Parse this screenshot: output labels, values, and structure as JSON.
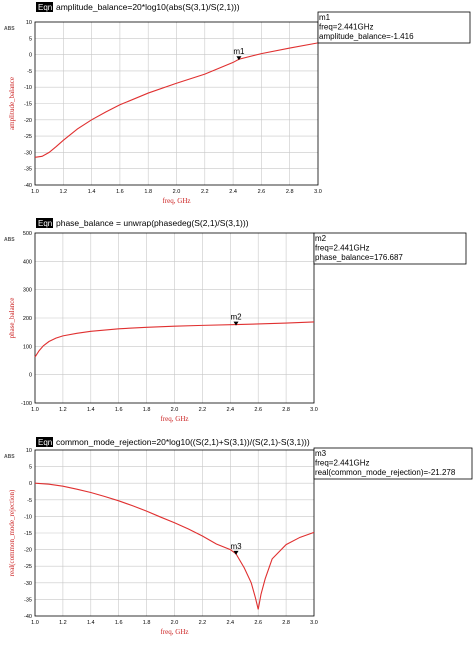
{
  "chart_data": [
    {
      "type": "line",
      "equation_badge": "Eqn",
      "equation": "amplitude_balance=20*log10(abs(S(3,1)/S(2,1)))",
      "ylabel": "amplitude_balance",
      "xlabel": "freq, GHz",
      "scale_tag": "ABS",
      "xlim": [
        1.0,
        3.0
      ],
      "ylim": [
        -40,
        10
      ],
      "x_ticks": [
        "1.0",
        "1.2",
        "1.4",
        "1.6",
        "1.8",
        "2.0",
        "2.2",
        "2.4",
        "2.6",
        "2.8",
        "3.0"
      ],
      "y_ticks": [
        "-40",
        "-35",
        "-30",
        "-25",
        "-20",
        "-15",
        "-10",
        "-5",
        "0",
        "5",
        "10"
      ],
      "grid": true,
      "series": [
        {
          "x": [
            1.0,
            1.05,
            1.1,
            1.15,
            1.2,
            1.3,
            1.4,
            1.5,
            1.6,
            1.8,
            2.0,
            2.2,
            2.4,
            2.441,
            2.6,
            2.8,
            3.0
          ],
          "y": [
            -31.5,
            -31.2,
            -30.0,
            -28.2,
            -26.3,
            -22.8,
            -20.0,
            -17.6,
            -15.4,
            -11.8,
            -8.8,
            -6.0,
            -2.4,
            -1.416,
            0.3,
            2.0,
            3.6
          ],
          "color": "#e03030"
        }
      ],
      "marker": {
        "label": "m1",
        "x": 2.441,
        "y": -1.416,
        "lines": [
          "m1",
          "freq=2.441GHz",
          "amplitude_balance=-1.416"
        ]
      }
    },
    {
      "type": "line",
      "equation_badge": "Eqn",
      "equation": "phase_balance = unwrap(phasedeg(S(2,1)/S(3,1)))",
      "ylabel": "phase_balance",
      "xlabel": "freq, GHz",
      "scale_tag": "ABS",
      "xlim": [
        1.0,
        3.0
      ],
      "ylim": [
        -100,
        500
      ],
      "x_ticks": [
        "1.0",
        "1.2",
        "1.4",
        "1.6",
        "1.8",
        "2.0",
        "2.2",
        "2.4",
        "2.6",
        "2.8",
        "3.0"
      ],
      "y_ticks": [
        "-100",
        "0",
        "100",
        "200",
        "300",
        "400",
        "500"
      ],
      "grid": true,
      "series": [
        {
          "x": [
            1.0,
            1.03,
            1.06,
            1.1,
            1.15,
            1.2,
            1.3,
            1.4,
            1.6,
            1.8,
            2.0,
            2.2,
            2.441,
            2.6,
            2.8,
            3.0
          ],
          "y": [
            62,
            85,
            102,
            117,
            129,
            137,
            146,
            153,
            162,
            167,
            171,
            174,
            176.687,
            179,
            182,
            186
          ],
          "color": "#e03030"
        }
      ],
      "marker": {
        "label": "m2",
        "x": 2.441,
        "y": 176.687,
        "lines": [
          "m2",
          "freq=2.441GHz",
          "phase_balance=176.687"
        ]
      }
    },
    {
      "type": "line",
      "equation_badge": "Eqn",
      "equation": "common_mode_rejection=20*log10((S(2,1)+S(3,1))/(S(2,1)-S(3,1)))",
      "ylabel": "real(common_mode_rejection)",
      "xlabel": "freq, GHz",
      "scale_tag": "ABS",
      "xlim": [
        1.0,
        3.0
      ],
      "ylim": [
        -40,
        10
      ],
      "x_ticks": [
        "1.0",
        "1.2",
        "1.4",
        "1.6",
        "1.8",
        "2.0",
        "2.2",
        "2.4",
        "2.6",
        "2.8",
        "3.0"
      ],
      "y_ticks": [
        "-40",
        "-35",
        "-30",
        "-25",
        "-20",
        "-15",
        "-10",
        "-5",
        "0",
        "5",
        "10"
      ],
      "grid": true,
      "series": [
        {
          "x": [
            1.0,
            1.1,
            1.2,
            1.3,
            1.4,
            1.5,
            1.6,
            1.7,
            1.8,
            1.9,
            2.0,
            2.1,
            2.2,
            2.3,
            2.4,
            2.441,
            2.5,
            2.55,
            2.58,
            2.6,
            2.62,
            2.65,
            2.7,
            2.8,
            2.9,
            3.0
          ],
          "y": [
            0,
            -0.3,
            -0.9,
            -1.8,
            -2.8,
            -4.0,
            -5.3,
            -6.8,
            -8.4,
            -10.2,
            -11.9,
            -13.8,
            -15.9,
            -18.3,
            -20.0,
            -21.278,
            -25.5,
            -30.0,
            -34.5,
            -38.0,
            -33.5,
            -28.8,
            -22.8,
            -18.5,
            -16.3,
            -14.8
          ],
          "color": "#e03030"
        }
      ],
      "marker": {
        "label": "m3",
        "x": 2.441,
        "y": -21.278,
        "lines": [
          "m3",
          "freq=2.441GHz",
          "real(common_mode_rejection)=-21.278"
        ]
      }
    }
  ]
}
